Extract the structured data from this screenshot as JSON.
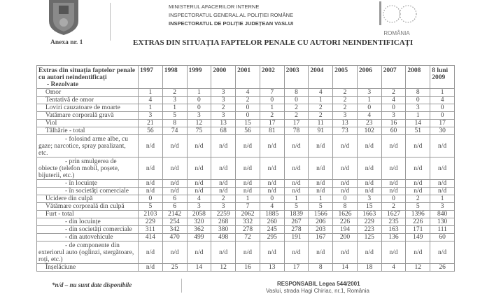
{
  "header": {
    "ministry_lines": [
      "MINISTERUL AFACERILOR INTERNE",
      "INSPECTORATUL GENERAL AL POLIȚIEI ROMÂNE",
      "INSPECTORATUL DE POLIȚIE JUDEȚEAN VASLUI"
    ],
    "logo_text": "ROMÂNIA",
    "annex": "Anexa nr. 1",
    "title": "EXTRAS DIN SITUAȚIA FAPTELOR PENALE CU AUTORI NEINDENTIFICAȚI"
  },
  "table": {
    "header_label": "Extras din situația faptelor penale cu autori neindentificați",
    "header_sub": "-     Rezolvate",
    "years": [
      "1997",
      "1998",
      "1999",
      "2000",
      "2001",
      "2002",
      "2003",
      "2004",
      "2005",
      "2006",
      "2007",
      "2008",
      "8 luni 2009"
    ],
    "rows": [
      {
        "label": "Omor",
        "indent": 1,
        "values": [
          "1",
          "2",
          "1",
          "3",
          "4",
          "7",
          "8",
          "4",
          "2",
          "3",
          "2",
          "8",
          "1"
        ]
      },
      {
        "label": "Tentativă de omor",
        "indent": 1,
        "values": [
          "4",
          "3",
          "0",
          "3",
          "2",
          "0",
          "0",
          "1",
          "2",
          "1",
          "4",
          "0",
          "4"
        ]
      },
      {
        "label": "Loviri cauzatoare de moarte",
        "indent": 1,
        "values": [
          "1",
          "1",
          "0",
          "2",
          "0",
          "1",
          "2",
          "2",
          "2",
          "0",
          "0",
          "3",
          "0"
        ]
      },
      {
        "label": "Vatămare corporală gravă",
        "indent": 1,
        "values": [
          "3",
          "5",
          "3",
          "3",
          "0",
          "2",
          "2",
          "2",
          "3",
          "4",
          "3",
          "1",
          "0"
        ]
      },
      {
        "label": "Viol",
        "indent": 1,
        "values": [
          "21",
          "8",
          "12",
          "13",
          "15",
          "17",
          "17",
          "11",
          "13",
          "23",
          "16",
          "14",
          "17"
        ]
      },
      {
        "label": "Tâlhărie - total",
        "indent": 1,
        "values": [
          "56",
          "74",
          "75",
          "68",
          "56",
          "81",
          "78",
          "91",
          "73",
          "102",
          "60",
          "51",
          "30"
        ]
      },
      {
        "label": "- folosind arme albe, cu gaze; narcotice, spray paralizant, etc.",
        "indent": 3,
        "values": [
          "n/d",
          "n/d",
          "n/d",
          "n/d",
          "n/d",
          "n/d",
          "n/d",
          "n/d",
          "n/d",
          "n/d",
          "n/d",
          "n/d",
          "n/d"
        ]
      },
      {
        "label": "- prin smulgerea de obiecte (telefon mobil, poșete, bijuterii, etc.)",
        "indent": 3,
        "values": [
          "n/d",
          "n/d",
          "n/d",
          "n/d",
          "n/d",
          "n/d",
          "n/d",
          "n/d",
          "n/d",
          "n/d",
          "n/d",
          "n/d",
          "n/d"
        ]
      },
      {
        "label": "- în locuințe",
        "indent": 2,
        "values": [
          "n/d",
          "n/d",
          "n/d",
          "n/d",
          "n/d",
          "n/d",
          "n/d",
          "n/d",
          "n/d",
          "n/d",
          "n/d",
          "n/d",
          "n/d"
        ]
      },
      {
        "label": "- în societăți comerciale",
        "indent": 2,
        "values": [
          "n/d",
          "n/d",
          "n/d",
          "n/d",
          "n/d",
          "n/d",
          "n/d",
          "n/d",
          "n/d",
          "n/d",
          "n/d",
          "n/d",
          "n/d"
        ]
      },
      {
        "label": "Ucidere din culpă",
        "indent": 1,
        "values": [
          "0",
          "6",
          "4",
          "2",
          "1",
          "0",
          "1",
          "1",
          "0",
          "3",
          "0",
          "2",
          "1"
        ]
      },
      {
        "label": "Vătămare corporală din culpă",
        "indent": 1,
        "values": [
          "5",
          "6",
          "3",
          "3",
          "7",
          "4",
          "5",
          "5",
          "8",
          "15",
          "2",
          "5",
          "3"
        ]
      },
      {
        "label": "Furt - total",
        "indent": 1,
        "values": [
          "2103",
          "2142",
          "2058",
          "2259",
          "2062",
          "1885",
          "1839",
          "1566",
          "1626",
          "1663",
          "1627",
          "1396",
          "840"
        ]
      },
      {
        "label": "- din locuințe",
        "indent": 2,
        "values": [
          "229",
          "254",
          "320",
          "268",
          "332",
          "260",
          "267",
          "206",
          "226",
          "229",
          "235",
          "226",
          "130"
        ]
      },
      {
        "label": "- din societăți comerciale",
        "indent": 2,
        "values": [
          "311",
          "342",
          "362",
          "380",
          "278",
          "245",
          "278",
          "203",
          "194",
          "223",
          "163",
          "171",
          "111"
        ]
      },
      {
        "label": "- din autovehicule",
        "indent": 2,
        "values": [
          "414",
          "470",
          "499",
          "498",
          "72",
          "295",
          "191",
          "167",
          "200",
          "125",
          "136",
          "149",
          "60"
        ]
      },
      {
        "label": "- de componente din exteriorul auto (oglinzi, stergătoare, roți, etc.)",
        "indent": 3,
        "values": [
          "n/d",
          "n/d",
          "n/d",
          "n/d",
          "n/d",
          "n/d",
          "n/d",
          "n/d",
          "n/d",
          "n/d",
          "n/d",
          "n/d",
          "n/d"
        ]
      },
      {
        "label": "Înșelăciune",
        "indent": 1,
        "values": [
          "n/d",
          "25",
          "14",
          "12",
          "16",
          "13",
          "17",
          "8",
          "14",
          "18",
          "4",
          "12",
          "26"
        ]
      }
    ]
  },
  "footer": {
    "note": "*n/d – nu sunt date disponibile",
    "responsible": "RESPONSABIL Legea 544/2001",
    "address": "Vaslui, strada Hagi Chiriac, nr.1, România"
  }
}
